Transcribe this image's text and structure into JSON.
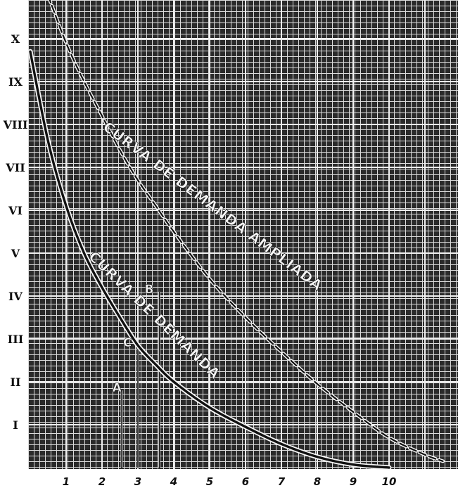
{
  "chart_data": {
    "type": "line",
    "title": "",
    "xlabel": "",
    "ylabel": "",
    "xlim": [
      0,
      12
    ],
    "ylim": [
      0,
      11
    ],
    "grid": true,
    "x_ticks": [
      "1",
      "2",
      "3",
      "4",
      "5",
      "6",
      "7",
      "8",
      "9",
      "10"
    ],
    "y_ticks": [
      {
        "label": "I",
        "value": 1
      },
      {
        "label": "II",
        "value": 2
      },
      {
        "label": "III",
        "value": 3
      },
      {
        "label": "IV",
        "value": 4
      },
      {
        "label": "V",
        "value": 5
      },
      {
        "label": "VI",
        "value": 6
      },
      {
        "label": "VII",
        "value": 7
      },
      {
        "label": "VIII",
        "value": 8
      },
      {
        "label": "IX",
        "value": 9
      },
      {
        "label": "X",
        "value": 10
      }
    ],
    "series": [
      {
        "name": "CURVA DE DEMANDA",
        "style": "solid",
        "points": [
          [
            0,
            9.7
          ],
          [
            0.5,
            7.6
          ],
          [
            1,
            6.1
          ],
          [
            1.5,
            5.0
          ],
          [
            2,
            4.2
          ],
          [
            2.5,
            3.5
          ],
          [
            3,
            2.85
          ],
          [
            3.5,
            2.4
          ],
          [
            4,
            2.0
          ],
          [
            5,
            1.4
          ],
          [
            6,
            0.95
          ],
          [
            7,
            0.55
          ],
          [
            8,
            0.25
          ],
          [
            9,
            0.07
          ],
          [
            10,
            0
          ]
        ]
      },
      {
        "name": "CURVA DE DEMANDA AMPLIADA",
        "style": "dashed",
        "points": [
          [
            0.5,
            11
          ],
          [
            1,
            9.9
          ],
          [
            1.5,
            9.0
          ],
          [
            2,
            8.2
          ],
          [
            2.5,
            7.4
          ],
          [
            3,
            6.7
          ],
          [
            3.5,
            6.1
          ],
          [
            4,
            5.5
          ],
          [
            5,
            4.4
          ],
          [
            6,
            3.5
          ],
          [
            7,
            2.7
          ],
          [
            8,
            1.95
          ],
          [
            9,
            1.3
          ],
          [
            10,
            0.7
          ],
          [
            11,
            0.3
          ],
          [
            11.5,
            0.15
          ]
        ]
      }
    ],
    "annotations": [
      {
        "label": "A",
        "x": 2.6,
        "y": 1.8
      },
      {
        "label": "B",
        "x": 3.5,
        "y": 4.1
      },
      {
        "label": "C",
        "x": 2.9,
        "y": 2.85
      }
    ],
    "drop_lines": [
      {
        "x": 2.55,
        "y": 1.8
      },
      {
        "x": 3.0,
        "y": 2.85
      },
      {
        "x": 3.6,
        "y": 4.1
      }
    ],
    "curve_labels": [
      "CURVA DE DEMANDA",
      "CURVA DE DEMANDA AMPLIADA"
    ],
    "colors": {
      "background": "#2a2a2a",
      "grid_fine": "#dcdcdc",
      "grid_major": "#f0f0f0",
      "curve": "#111111",
      "paper": "#ffffff"
    }
  }
}
